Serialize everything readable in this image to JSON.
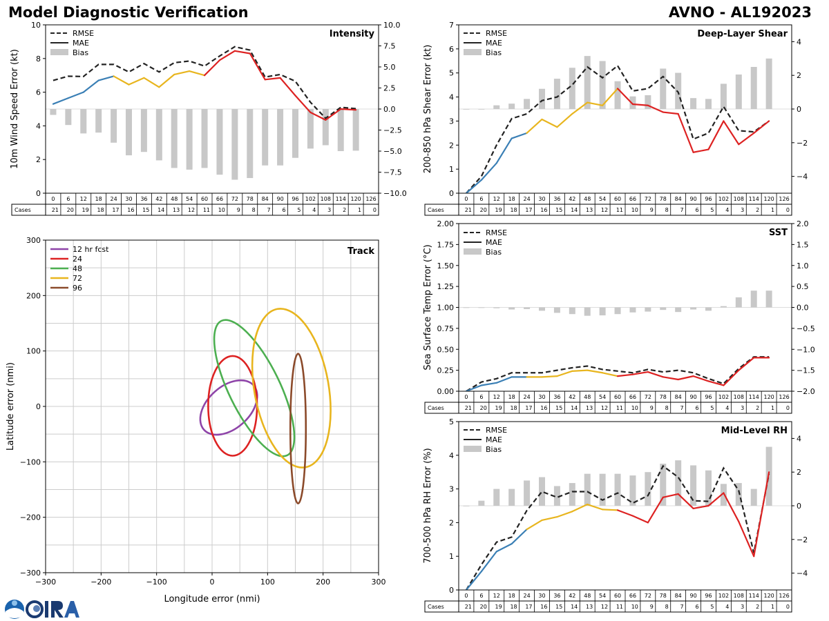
{
  "header": {
    "title": "Model Diagnostic Verification",
    "model_storm": "AVNO - AL192023"
  },
  "hours": [
    "0",
    "6",
    "12",
    "18",
    "24",
    "30",
    "36",
    "42",
    "48",
    "54",
    "60",
    "66",
    "72",
    "78",
    "84",
    "90",
    "96",
    "102",
    "108",
    "114",
    "120",
    "126"
  ],
  "cases_label": "Cases",
  "cases": [
    "21",
    "20",
    "19",
    "18",
    "17",
    "16",
    "15",
    "14",
    "13",
    "12",
    "11",
    "10",
    "9",
    "8",
    "7",
    "6",
    "5",
    "4",
    "3",
    "2",
    "1",
    "0"
  ],
  "legend": {
    "rmse": "RMSE",
    "mae": "MAE",
    "bias": "Bias"
  },
  "colors": {
    "early": "#3a7fb5",
    "mid": "#e8b51e",
    "late": "#dd2222",
    "rmse": "#222222",
    "bias": "#c8c8c8",
    "grid": "#cccccc"
  },
  "chart_data": [
    {
      "id": "intensity",
      "type": "line",
      "title": "Intensity",
      "ylabel": "10m Wind Speed Error (kt)",
      "ylim": [
        0,
        10
      ],
      "yticks": [
        "0",
        "2",
        "4",
        "6",
        "8",
        "10"
      ],
      "y2lim": [
        -10,
        10
      ],
      "y2ticks": [
        "−10.0",
        "−7.5",
        "−5.0",
        "−2.5",
        "0.0",
        "2.5",
        "5.0",
        "7.5",
        "10.0"
      ],
      "rmse": [
        6.7,
        6.95,
        6.93,
        7.65,
        7.65,
        7.2,
        7.7,
        7.2,
        7.75,
        7.85,
        7.55,
        8.15,
        8.7,
        8.5,
        6.9,
        7.05,
        6.65,
        5.4,
        4.45,
        5.1,
        5.02
      ],
      "mae": [
        5.3,
        5.65,
        6.0,
        6.7,
        6.95,
        6.45,
        6.85,
        6.3,
        7.05,
        7.25,
        7.0,
        7.9,
        8.45,
        8.3,
        6.75,
        6.85,
        5.8,
        4.8,
        4.35,
        5.0,
        4.95
      ],
      "bias": [
        -0.7,
        -1.9,
        -2.9,
        -2.8,
        -4.0,
        -5.5,
        -5.1,
        -6.1,
        -7.0,
        -7.2,
        -7.0,
        -7.8,
        -8.4,
        -8.2,
        -6.7,
        -6.7,
        -5.8,
        -4.7,
        -4.3,
        -5.0,
        -4.95
      ]
    },
    {
      "id": "shear",
      "type": "line",
      "title": "Deep-Layer Shear",
      "ylabel": "200-850 hPa Shear Error (kt)",
      "ylim": [
        0,
        7
      ],
      "yticks": [
        "0",
        "1",
        "2",
        "3",
        "4",
        "5",
        "6",
        "7"
      ],
      "y2lim": [
        -5,
        5
      ],
      "y2ticks": [
        "−4",
        "−2",
        "0",
        "2",
        "4"
      ],
      "rmse": [
        0.0,
        0.7,
        2.0,
        3.1,
        3.3,
        3.85,
        4.0,
        4.5,
        5.25,
        4.8,
        5.3,
        4.25,
        4.35,
        4.85,
        4.2,
        2.25,
        2.5,
        3.6,
        2.6,
        2.55,
        3.0
      ],
      "mae": [
        0.0,
        0.55,
        1.25,
        2.28,
        2.5,
        3.07,
        2.75,
        3.3,
        3.77,
        3.65,
        4.35,
        3.7,
        3.65,
        3.37,
        3.3,
        1.7,
        1.82,
        3.0,
        2.03,
        2.5,
        3.0
      ],
      "bias": [
        0.0,
        0.0,
        0.22,
        0.32,
        0.6,
        1.2,
        1.8,
        2.45,
        3.15,
        2.85,
        1.65,
        0.75,
        0.82,
        2.4,
        2.15,
        0.65,
        0.6,
        1.5,
        2.05,
        2.5,
        3.0
      ]
    },
    {
      "id": "sst",
      "type": "line",
      "title": "SST",
      "ylabel": "Sea Surface Temp Error (°C)",
      "ylim": [
        0,
        2
      ],
      "yticks": [
        "0.00",
        "0.25",
        "0.50",
        "0.75",
        "1.00",
        "1.25",
        "1.50",
        "1.75",
        "2.00"
      ],
      "y2lim": [
        -2,
        2
      ],
      "y2ticks": [
        "−2.0",
        "−1.5",
        "−1.0",
        "−0.5",
        "0.0",
        "0.5",
        "1.0",
        "1.5",
        "2.0"
      ],
      "rmse": [
        0.0,
        0.11,
        0.15,
        0.22,
        0.22,
        0.22,
        0.25,
        0.28,
        0.3,
        0.26,
        0.24,
        0.22,
        0.26,
        0.23,
        0.25,
        0.22,
        0.15,
        0.09,
        0.27,
        0.41,
        0.41
      ],
      "mae": [
        0.0,
        0.07,
        0.1,
        0.17,
        0.17,
        0.17,
        0.18,
        0.24,
        0.25,
        0.22,
        0.18,
        0.2,
        0.23,
        0.17,
        0.14,
        0.18,
        0.12,
        0.07,
        0.25,
        0.4,
        0.4
      ],
      "bias": [
        0.0,
        -0.01,
        -0.02,
        -0.05,
        -0.04,
        -0.08,
        -0.13,
        -0.16,
        -0.2,
        -0.19,
        -0.16,
        -0.12,
        -0.1,
        -0.06,
        -0.11,
        -0.05,
        -0.08,
        0.03,
        0.24,
        0.4,
        0.4
      ]
    },
    {
      "id": "rh",
      "type": "line",
      "title": "Mid-Level RH",
      "ylabel": "700-500 hPa RH Error (%)",
      "ylim": [
        0,
        5
      ],
      "yticks": [
        "0",
        "1",
        "2",
        "3",
        "4",
        "5"
      ],
      "y2lim": [
        -5,
        5
      ],
      "y2ticks": [
        "−4",
        "−2",
        "0",
        "2",
        "4"
      ],
      "rmse": [
        0.0,
        0.75,
        1.42,
        1.57,
        2.36,
        2.92,
        2.75,
        2.92,
        2.92,
        2.67,
        2.88,
        2.58,
        2.8,
        3.68,
        3.35,
        2.65,
        2.63,
        3.62,
        2.95,
        1.1,
        3.45
      ],
      "mae": [
        0.0,
        0.55,
        1.14,
        1.37,
        1.8,
        2.07,
        2.17,
        2.33,
        2.54,
        2.39,
        2.37,
        2.2,
        2.0,
        2.75,
        2.85,
        2.42,
        2.5,
        2.88,
        2.03,
        1.0,
        3.5
      ],
      "bias": [
        0.0,
        0.3,
        1.0,
        1.0,
        1.5,
        1.7,
        1.17,
        1.35,
        1.9,
        1.9,
        1.9,
        1.8,
        2.0,
        2.5,
        2.7,
        2.4,
        2.1,
        1.3,
        1.35,
        1.0,
        3.5
      ]
    },
    {
      "id": "track",
      "type": "scatter",
      "title": "Track",
      "xlabel": "Longitude error (nmi)",
      "ylabel": "Latitude error (nmi)",
      "xlim": [
        -300,
        300
      ],
      "ylim": [
        -300,
        300
      ],
      "xticks": [
        "−300",
        "−200",
        "−100",
        "0",
        "100",
        "200",
        "300"
      ],
      "yticks": [
        "−300",
        "−200",
        "−100",
        "0",
        "100",
        "200",
        "300"
      ],
      "ellipses": [
        {
          "name": "12 hr fcst",
          "color": "#8e44a8",
          "cx": 30,
          "cy": -2,
          "a": 60,
          "b": 38,
          "angle": 42
        },
        {
          "name": "24",
          "color": "#dd2222",
          "cx": 37,
          "cy": 1,
          "a": 90,
          "b": 44,
          "angle": 90
        },
        {
          "name": "48",
          "color": "#4caf50",
          "cx": 76,
          "cy": 33,
          "a": 135,
          "b": 46,
          "angle": 116
        },
        {
          "name": "72",
          "color": "#e8b51e",
          "cx": 143,
          "cy": 33,
          "a": 145,
          "b": 67,
          "angle": 100
        },
        {
          "name": "96",
          "color": "#8b4a2a",
          "cx": 155,
          "cy": -40,
          "a": 135,
          "b": 14,
          "angle": 90
        }
      ]
    }
  ]
}
